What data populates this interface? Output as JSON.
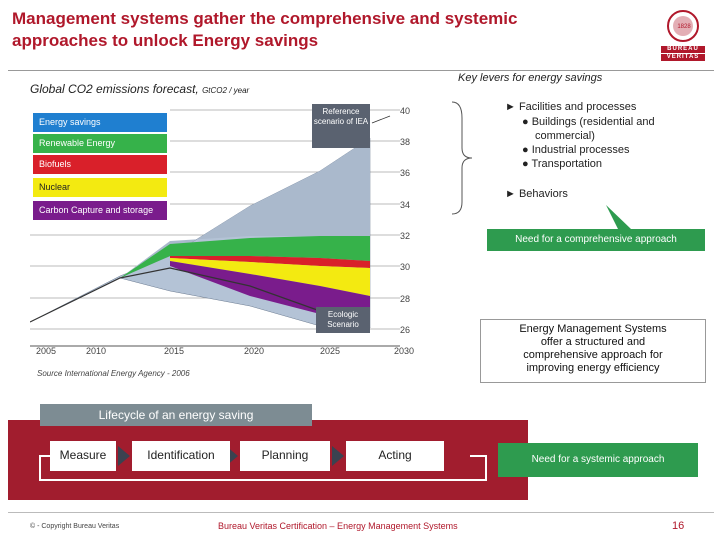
{
  "title": "Management systems gather the comprehensive and systemic approaches to unlock Energy savings",
  "logo": {
    "line1": "BUREAU",
    "line2": "VERITAS",
    "seal_year": "1828"
  },
  "chart": {
    "title": "Global CO2 emissions forecast,",
    "unit": "GtCO2 / year",
    "legend": [
      {
        "label": "Energy savings",
        "color": "#1f7fd0"
      },
      {
        "label": "Renewable Energy",
        "color": "#36b24a"
      },
      {
        "label": "Biofuels",
        "color": "#d9202a"
      },
      {
        "label": "Nuclear",
        "color": "#f3ea11"
      },
      {
        "label": "Carbon Capture and storage",
        "color": "#7a1c8c"
      }
    ],
    "reference_label": "Reference scenario of IEA",
    "ecologic_label": "Ecologic Scenario",
    "y_ticks": [
      "40",
      "38",
      "36",
      "34",
      "32",
      "30",
      "28",
      "26"
    ],
    "x_ticks": [
      "2005",
      "2010",
      "2015",
      "2020",
      "2025",
      "2030"
    ],
    "source": "Source International Energy Agency - 2006"
  },
  "levers": {
    "title": "Key levers for energy savings",
    "item1": "Facilities and processes",
    "sub1": "Buildings (residential and",
    "sub1b": "commercial)",
    "sub2": "Industrial processes",
    "sub3": "Transportation",
    "item2": "Behaviors",
    "need_comprehensive": "Need for a comprehensive approach",
    "ems_text1": "Energy Management Systems",
    "ems_text2": "offer a structured and",
    "ems_text3": "comprehensive approach for",
    "ems_text4": "improving energy efficiency"
  },
  "lifecycle": {
    "title": "Lifecycle of an energy saving",
    "steps": [
      "Measure",
      "Identification",
      "Planning",
      "Acting"
    ],
    "need_systemic": "Need for a systemic approach"
  },
  "footer": {
    "copyright": "© - Copyright Bureau Veritas",
    "center": "Bureau Veritas Certification – Energy Management Systems",
    "page": "16"
  }
}
